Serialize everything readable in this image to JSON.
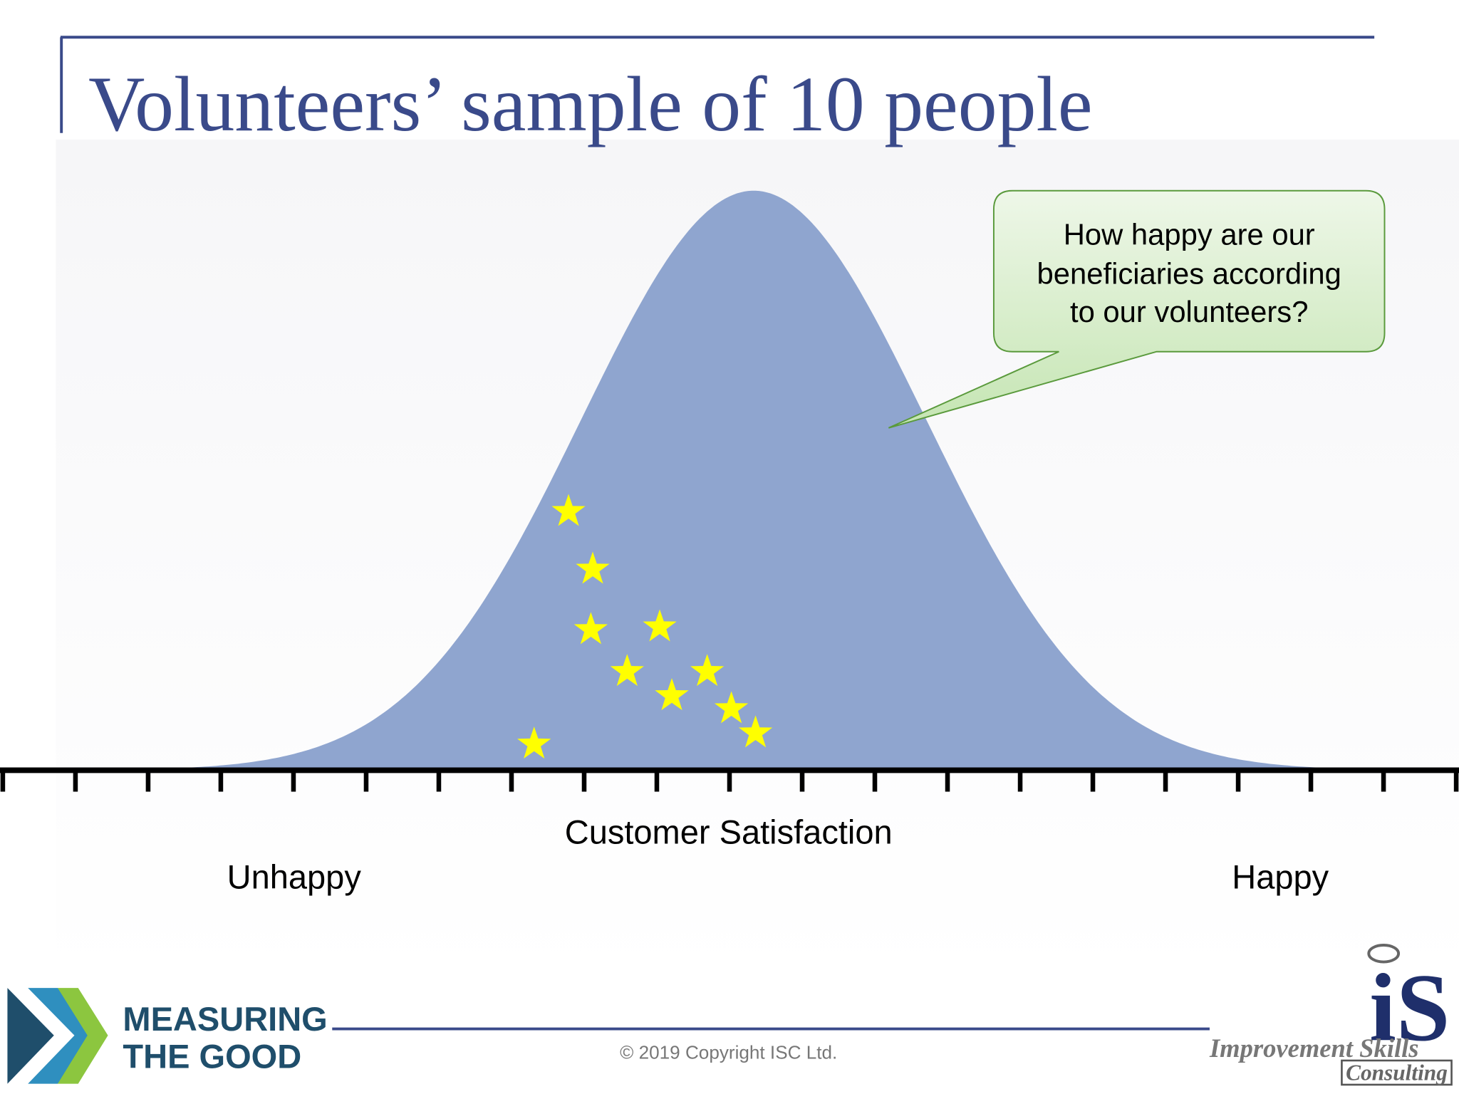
{
  "slide": {
    "title": "Volunteers’ sample of 10 people",
    "callout": {
      "lines": [
        "How happy are our",
        "beneficiaries according",
        "to our volunteers?"
      ]
    },
    "axis": {
      "label": "Customer Satisfaction",
      "left": "Unhappy",
      "right": "Happy"
    },
    "footer": {
      "copyright": "© 2019 Copyright ISC Ltd.",
      "left_logo": {
        "line1": "MEASURING",
        "line2": "THE GOOD"
      },
      "right_logo": {
        "mark": "iS",
        "line1": "Improvement Skills",
        "line2": "Consulting"
      }
    }
  }
}
